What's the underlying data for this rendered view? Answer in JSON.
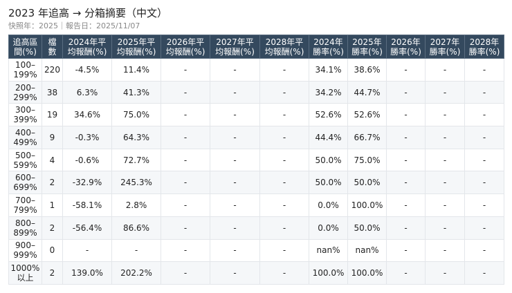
{
  "header": {
    "title": "2023 年追高 → 分箱摘要（中文）",
    "subtitle": "快照年：2025｜報告日：2025/11/07"
  },
  "table": {
    "columns": [
      {
        "line1": "追高區",
        "line2": "間(%)"
      },
      {
        "line1": "檔",
        "line2": "數"
      },
      {
        "line1": "2024年平",
        "line2": "均報酬(%)"
      },
      {
        "line1": "2025年平",
        "line2": "均報酬(%)"
      },
      {
        "line1": "2026年平",
        "line2": "均報酬(%)"
      },
      {
        "line1": "2027年平",
        "line2": "均報酬(%)"
      },
      {
        "line1": "2028年平",
        "line2": "均報酬(%)"
      },
      {
        "line1": "2024年",
        "line2": "勝率(%)"
      },
      {
        "line1": "2025年",
        "line2": "勝率(%)"
      },
      {
        "line1": "2026年",
        "line2": "勝率(%)"
      },
      {
        "line1": "2027年",
        "line2": "勝率(%)"
      },
      {
        "line1": "2028年",
        "line2": "勝率(%)"
      }
    ],
    "rows": [
      {
        "range1": "100–",
        "range2": "199%",
        "count": "220",
        "ret2024": "-4.5%",
        "ret2025": "11.4%",
        "ret2026": "-",
        "ret2027": "-",
        "ret2028": "-",
        "win2024": "34.1%",
        "win2025": "38.6%",
        "win2026": "-",
        "win2027": "-",
        "win2028": "-"
      },
      {
        "range1": "200–",
        "range2": "299%",
        "count": "38",
        "ret2024": "6.3%",
        "ret2025": "41.3%",
        "ret2026": "-",
        "ret2027": "-",
        "ret2028": "-",
        "win2024": "34.2%",
        "win2025": "44.7%",
        "win2026": "-",
        "win2027": "-",
        "win2028": "-"
      },
      {
        "range1": "300–",
        "range2": "399%",
        "count": "19",
        "ret2024": "34.6%",
        "ret2025": "75.0%",
        "ret2026": "-",
        "ret2027": "-",
        "ret2028": "-",
        "win2024": "52.6%",
        "win2025": "52.6%",
        "win2026": "-",
        "win2027": "-",
        "win2028": "-"
      },
      {
        "range1": "400–",
        "range2": "499%",
        "count": "9",
        "ret2024": "-0.3%",
        "ret2025": "64.3%",
        "ret2026": "-",
        "ret2027": "-",
        "ret2028": "-",
        "win2024": "44.4%",
        "win2025": "66.7%",
        "win2026": "-",
        "win2027": "-",
        "win2028": "-"
      },
      {
        "range1": "500–",
        "range2": "599%",
        "count": "4",
        "ret2024": "-0.6%",
        "ret2025": "72.7%",
        "ret2026": "-",
        "ret2027": "-",
        "ret2028": "-",
        "win2024": "50.0%",
        "win2025": "75.0%",
        "win2026": "-",
        "win2027": "-",
        "win2028": "-"
      },
      {
        "range1": "600–",
        "range2": "699%",
        "count": "2",
        "ret2024": "-32.9%",
        "ret2025": "245.3%",
        "ret2026": "-",
        "ret2027": "-",
        "ret2028": "-",
        "win2024": "50.0%",
        "win2025": "50.0%",
        "win2026": "-",
        "win2027": "-",
        "win2028": "-"
      },
      {
        "range1": "700–",
        "range2": "799%",
        "count": "1",
        "ret2024": "-58.1%",
        "ret2025": "2.8%",
        "ret2026": "-",
        "ret2027": "-",
        "ret2028": "-",
        "win2024": "0.0%",
        "win2025": "100.0%",
        "win2026": "-",
        "win2027": "-",
        "win2028": "-"
      },
      {
        "range1": "800–",
        "range2": "899%",
        "count": "2",
        "ret2024": "-56.4%",
        "ret2025": "86.6%",
        "ret2026": "-",
        "ret2027": "-",
        "ret2028": "-",
        "win2024": "0.0%",
        "win2025": "50.0%",
        "win2026": "-",
        "win2027": "-",
        "win2028": "-"
      },
      {
        "range1": "900–",
        "range2": "999%",
        "count": "0",
        "ret2024": "-",
        "ret2025": "-",
        "ret2026": "-",
        "ret2027": "-",
        "ret2028": "-",
        "win2024": "nan%",
        "win2025": "nan%",
        "win2026": "-",
        "win2027": "-",
        "win2028": "-"
      },
      {
        "range1": "1000%",
        "range2": "以上",
        "count": "2",
        "ret2024": "139.0%",
        "ret2025": "202.2%",
        "ret2026": "-",
        "ret2027": "-",
        "ret2028": "-",
        "win2024": "100.0%",
        "win2025": "100.0%",
        "win2026": "-",
        "win2027": "-",
        "win2028": "-"
      }
    ]
  },
  "colors": {
    "header_bg": "#34495e",
    "header_text": "#ffffff",
    "stripe_bg": "#f5f7f9",
    "border": "#e3e6ea",
    "subtitle_text": "#888888"
  }
}
